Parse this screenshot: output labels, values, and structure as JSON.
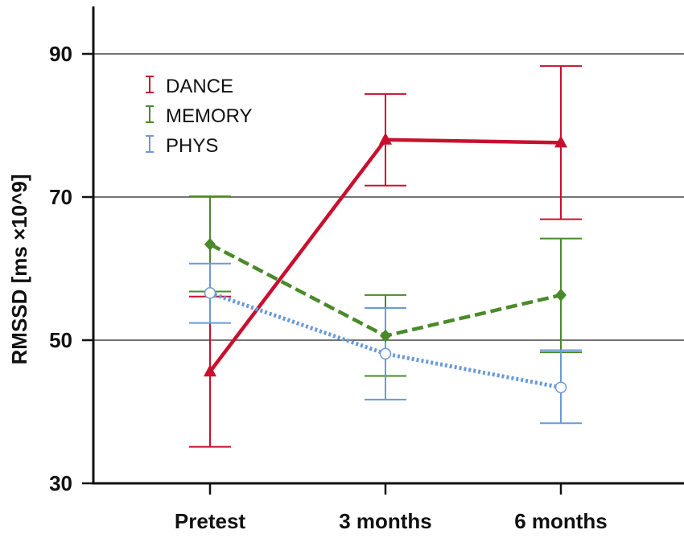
{
  "chart_data": {
    "type": "line",
    "title": "",
    "xlabel": "",
    "ylabel": "RMSSD [ms ×10^9]",
    "categories": [
      "Pretest",
      "3 months",
      "6 months"
    ],
    "ylim": [
      30,
      95
    ],
    "yticks": [
      30,
      50,
      70,
      90
    ],
    "grid": true,
    "legend_position": "top-left",
    "series": [
      {
        "name": "DANCE",
        "color": "#c8102e",
        "line_style": "solid",
        "marker": "triangle",
        "values": [
          45.6,
          78,
          77.6
        ],
        "error_low": [
          35.1,
          71.6,
          66.9
        ],
        "error_high": [
          56.1,
          84.4,
          88.3
        ]
      },
      {
        "name": "MEMORY",
        "color": "#4a8a2a",
        "line_style": "dashed",
        "marker": "diamond",
        "values": [
          63.4,
          50.6,
          56.3
        ],
        "error_low": [
          56.8,
          45,
          48.3
        ],
        "error_high": [
          70.1,
          56.3,
          64.2
        ]
      },
      {
        "name": "PHYS",
        "color": "#6a9ad8",
        "line_style": "dotted",
        "marker": "circle-open",
        "values": [
          56.6,
          48.1,
          43.4
        ],
        "error_low": [
          52.4,
          41.7,
          38.4
        ],
        "error_high": [
          60.7,
          54.5,
          48.6
        ]
      }
    ]
  }
}
